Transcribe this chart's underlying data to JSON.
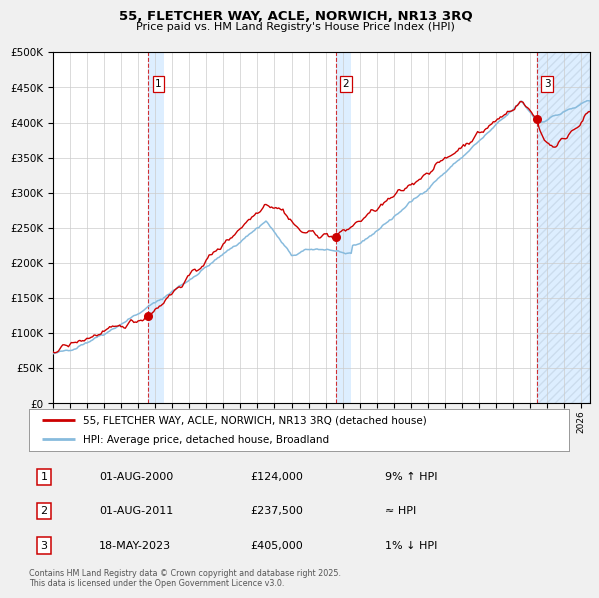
{
  "title": "55, FLETCHER WAY, ACLE, NORWICH, NR13 3RQ",
  "subtitle": "Price paid vs. HM Land Registry's House Price Index (HPI)",
  "legend_line1": "55, FLETCHER WAY, ACLE, NORWICH, NR13 3RQ (detached house)",
  "legend_line2": "HPI: Average price, detached house, Broadland",
  "footnote": "Contains HM Land Registry data © Crown copyright and database right 2025.\nThis data is licensed under the Open Government Licence v3.0.",
  "sale_points": [
    {
      "label": "1",
      "date_num": 2000.583,
      "value": 124000,
      "marker_color": "#cc0000"
    },
    {
      "label": "2",
      "date_num": 2011.583,
      "value": 237500,
      "marker_color": "#cc0000"
    },
    {
      "label": "3",
      "date_num": 2023.375,
      "value": 405000,
      "marker_color": "#cc0000"
    }
  ],
  "sale_annotations": [
    {
      "label": "1",
      "date": "01-AUG-2000",
      "price": "£124,000",
      "hpi_rel": "9% ↑ HPI"
    },
    {
      "label": "2",
      "date": "01-AUG-2011",
      "price": "£237,500",
      "hpi_rel": "≈ HPI"
    },
    {
      "label": "3",
      "date": "18-MAY-2023",
      "price": "£405,000",
      "hpi_rel": "1% ↓ HPI"
    }
  ],
  "vline_dates": [
    2000.583,
    2011.583,
    2023.375
  ],
  "vline_color": "#cc0000",
  "shade_regions": [
    {
      "xmin": 2000.583,
      "xmax": 2001.5,
      "hatch": false
    },
    {
      "xmin": 2011.583,
      "xmax": 2012.5,
      "hatch": false
    },
    {
      "xmin": 2023.375,
      "xmax": 2026.5,
      "hatch": true
    }
  ],
  "xlim": [
    1995.0,
    2026.5
  ],
  "ylim": [
    0,
    500000
  ],
  "yticks": [
    0,
    50000,
    100000,
    150000,
    200000,
    250000,
    300000,
    350000,
    400000,
    450000,
    500000
  ],
  "background_color": "#f0f0f0",
  "plot_bg_color": "#ffffff",
  "grid_color": "#cccccc",
  "hpi_line_color": "#88bbdd",
  "price_line_color": "#cc0000",
  "shade_color": "#ddeeff",
  "hatch_color": "#ccddf0"
}
